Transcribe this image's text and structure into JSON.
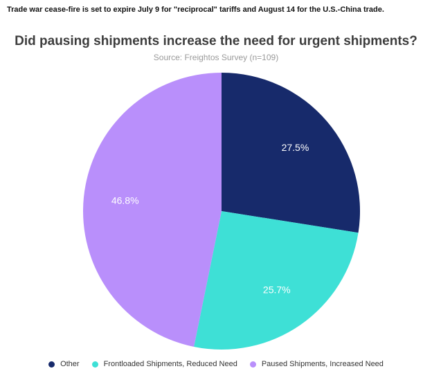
{
  "header": {
    "caption": "Trade war cease-fire is set to expire July 9 for \"reciprocal\" tariffs and August 14 for the U.S.-China trade."
  },
  "chart_data": {
    "type": "pie",
    "title": "Did pausing shipments increase the need for urgent shipments?",
    "subtitle": "Source: Freightos Survey (n=109)",
    "start": "12 o'clock, clockwise",
    "legend_position": "bottom",
    "slices": [
      {
        "label": "Other",
        "value": 27.5,
        "display": "27.5%",
        "color": "#172a6b"
      },
      {
        "label": "Frontloaded Shipments, Reduced Need",
        "value": 25.7,
        "display": "25.7%",
        "color": "#3ee0d6"
      },
      {
        "label": "Paused Shipments, Increased Need",
        "value": 46.8,
        "display": "46.8%",
        "color": "#b98ffb"
      }
    ]
  }
}
